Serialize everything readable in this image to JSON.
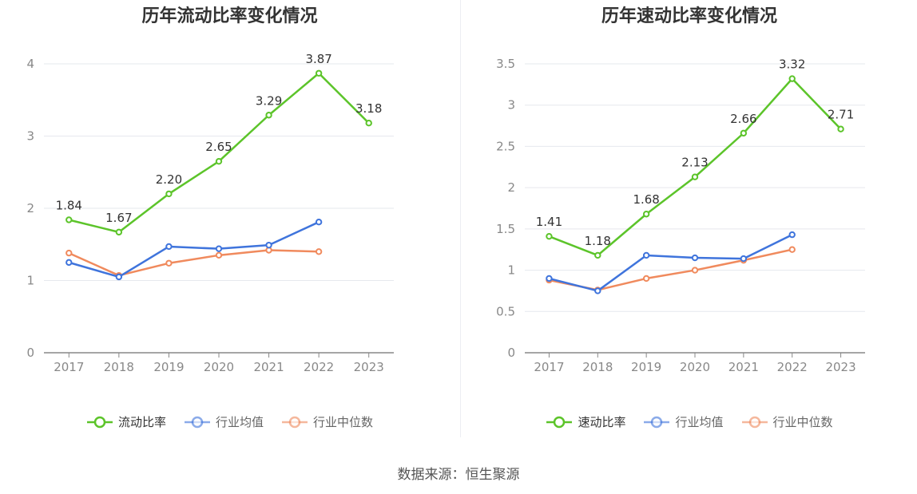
{
  "source": "数据来源：恒生聚源",
  "chart_data": [
    {
      "type": "line",
      "title": "历年流动比率变化情况",
      "categories": [
        "2017",
        "2018",
        "2019",
        "2020",
        "2021",
        "2022",
        "2023"
      ],
      "ylim": [
        0,
        4
      ],
      "yticks": [
        0,
        1,
        2,
        3,
        4
      ],
      "ytick_labels": [
        "0",
        "1",
        "2",
        "3",
        "4"
      ],
      "grid": true,
      "legend_position": "bottom",
      "series": [
        {
          "name": "流动比率",
          "color": "#5cc42a",
          "values": [
            1.84,
            1.67,
            2.2,
            2.65,
            3.29,
            3.87,
            3.18
          ],
          "labels": [
            "1.84",
            "1.67",
            "2.20",
            "2.65",
            "3.29",
            "3.87",
            "3.18"
          ]
        },
        {
          "name": "行业均值",
          "color": "#3f74dc",
          "values": [
            1.25,
            1.05,
            1.47,
            1.44,
            1.49,
            1.81,
            null
          ]
        },
        {
          "name": "行业中位数",
          "color": "#f08a5d",
          "values": [
            1.38,
            1.07,
            1.24,
            1.35,
            1.42,
            1.4,
            null
          ]
        }
      ]
    },
    {
      "type": "line",
      "title": "历年速动比率变化情况",
      "categories": [
        "2017",
        "2018",
        "2019",
        "2020",
        "2021",
        "2022",
        "2023"
      ],
      "ylim": [
        0,
        3.5
      ],
      "yticks": [
        0,
        0.5,
        1,
        1.5,
        2,
        2.5,
        3,
        3.5
      ],
      "ytick_labels": [
        "0",
        "0.5",
        "1",
        "1.5",
        "2",
        "2.5",
        "3",
        "3.5"
      ],
      "grid": true,
      "legend_position": "bottom",
      "series": [
        {
          "name": "速动比率",
          "color": "#5cc42a",
          "values": [
            1.41,
            1.18,
            1.68,
            2.13,
            2.66,
            3.32,
            2.71
          ],
          "labels": [
            "1.41",
            "1.18",
            "1.68",
            "2.13",
            "2.66",
            "3.32",
            "2.71"
          ]
        },
        {
          "name": "行业均值",
          "color": "#3f74dc",
          "values": [
            0.9,
            0.75,
            1.18,
            1.15,
            1.14,
            1.43,
            null
          ]
        },
        {
          "name": "行业中位数",
          "color": "#f08a5d",
          "values": [
            0.88,
            0.76,
            0.9,
            1.0,
            1.12,
            1.25,
            null
          ]
        }
      ]
    }
  ]
}
